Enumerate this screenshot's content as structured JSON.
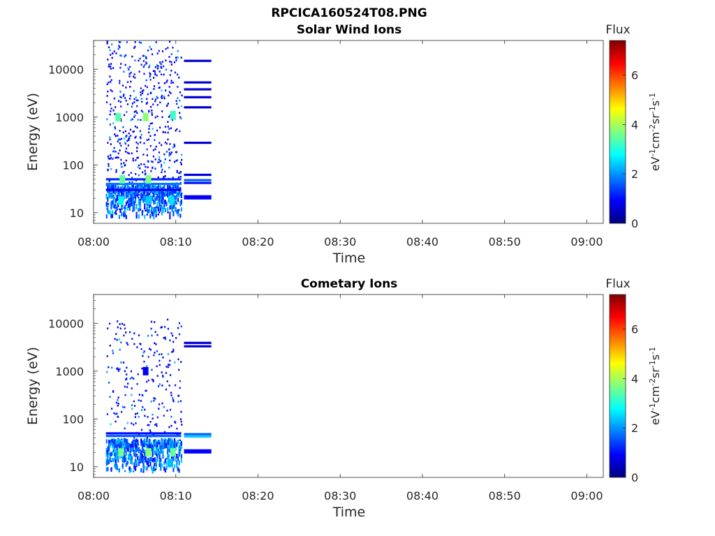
{
  "figure": {
    "title": "RPCICA160524T08.PNG"
  },
  "colors": {
    "axis": "#262626",
    "colormap": [
      "#00007f",
      "#0000ff",
      "#007fff",
      "#00ffff",
      "#7fff7f",
      "#ffff00",
      "#ff7f00",
      "#ff0000",
      "#7f0000"
    ]
  },
  "chart_data": [
    {
      "type": "heatmap",
      "title": "Solar Wind Ions",
      "xlabel": "Time",
      "ylabel": "Energy (eV)",
      "y_scale": "log",
      "xlim": [
        "08:00",
        "09:02"
      ],
      "ylim": [
        6,
        40000
      ],
      "x_ticks": [
        "08:00",
        "08:10",
        "08:20",
        "08:30",
        "08:40",
        "08:50",
        "09:00"
      ],
      "y_ticks": [
        "10",
        "100",
        "1000",
        "10000"
      ],
      "colorbar": {
        "title": "Flux",
        "label": "eV-1cm-2sr-1s-1",
        "range": [
          0,
          7.4
        ],
        "ticks": [
          "0",
          "2",
          "4",
          "6"
        ]
      },
      "data_extent": {
        "start": "08:01:30",
        "end": "08:14:20"
      },
      "clusters": [
        {
          "t": "08:03:00",
          "energy": 1000,
          "value": 3.4
        },
        {
          "t": "08:06:20",
          "energy": 1000,
          "value": 3.8
        },
        {
          "t": "08:09:40",
          "energy": 1100,
          "value": 3.2
        },
        {
          "t": "08:03:30",
          "energy": 50,
          "value": 3.5
        },
        {
          "t": "08:06:40",
          "energy": 50,
          "value": 3.7
        },
        {
          "t": "08:03:20",
          "energy": 18,
          "value": 2.8
        },
        {
          "t": "08:06:40",
          "energy": 18,
          "value": 2.4
        },
        {
          "t": "08:09:30",
          "energy": 18,
          "value": 2.6
        }
      ],
      "bands": [
        {
          "t_start": "08:01:30",
          "t_end": "08:10:40",
          "energy": 50,
          "value": 1.2
        },
        {
          "t_start": "08:01:30",
          "t_end": "08:10:40",
          "energy": 40,
          "value": 1.8
        },
        {
          "t_start": "08:01:30",
          "t_end": "08:10:40",
          "energy": 30,
          "value": 0.9
        },
        {
          "t_start": "08:11:00",
          "t_end": "08:14:20",
          "energy": 15000,
          "value": 0.6
        },
        {
          "t_start": "08:11:00",
          "t_end": "08:14:20",
          "energy": 5300,
          "value": 0.6
        },
        {
          "t_start": "08:11:00",
          "t_end": "08:14:20",
          "energy": 3800,
          "value": 0.6
        },
        {
          "t_start": "08:11:00",
          "t_end": "08:14:20",
          "energy": 2600,
          "value": 0.6
        },
        {
          "t_start": "08:11:00",
          "t_end": "08:14:20",
          "energy": 1600,
          "value": 0.6
        },
        {
          "t_start": "08:11:00",
          "t_end": "08:14:20",
          "energy": 290,
          "value": 0.6
        },
        {
          "t_start": "08:11:00",
          "t_end": "08:14:20",
          "energy": 62,
          "value": 0.7
        },
        {
          "t_start": "08:11:00",
          "t_end": "08:14:20",
          "energy": 48,
          "value": 1.6
        },
        {
          "t_start": "08:11:00",
          "t_end": "08:14:20",
          "energy": 42,
          "value": 1.0
        },
        {
          "t_start": "08:11:00",
          "t_end": "08:14:20",
          "energy": 22,
          "value": 0.9
        },
        {
          "t_start": "08:11:00",
          "t_end": "08:14:20",
          "energy": 20,
          "value": 0.9
        }
      ]
    },
    {
      "type": "heatmap",
      "title": "Cometary Ions",
      "xlabel": "Time",
      "ylabel": "Energy (eV)",
      "y_scale": "log",
      "xlim": [
        "08:00",
        "09:02"
      ],
      "ylim": [
        6,
        40000
      ],
      "x_ticks": [
        "08:00",
        "08:10",
        "08:20",
        "08:30",
        "08:40",
        "08:50",
        "09:00"
      ],
      "y_ticks": [
        "10",
        "100",
        "1000",
        "10000"
      ],
      "colorbar": {
        "title": "Flux",
        "label": "eV-1cm-2sr-1s-1",
        "range": [
          0,
          7.4
        ],
        "ticks": [
          "0",
          "2",
          "4",
          "6"
        ]
      },
      "data_extent": {
        "start": "08:01:30",
        "end": "08:14:20"
      },
      "clusters": [
        {
          "t": "08:03:20",
          "energy": 20,
          "value": 3.6
        },
        {
          "t": "08:06:40",
          "energy": 20,
          "value": 3.8
        },
        {
          "t": "08:09:40",
          "energy": 20,
          "value": 3.5
        },
        {
          "t": "08:06:20",
          "energy": 1000,
          "value": 0.8
        },
        {
          "t": "08:09:20",
          "energy": 12,
          "value": 2.3
        }
      ],
      "bands": [
        {
          "t_start": "08:01:30",
          "t_end": "08:10:40",
          "energy": 50,
          "value": 1.0
        },
        {
          "t_start": "08:01:30",
          "t_end": "08:10:40",
          "energy": 44,
          "value": 1.6
        },
        {
          "t_start": "08:11:00",
          "t_end": "08:14:20",
          "energy": 3900,
          "value": 0.6
        },
        {
          "t_start": "08:11:00",
          "t_end": "08:14:20",
          "energy": 3300,
          "value": 0.6
        },
        {
          "t_start": "08:11:00",
          "t_end": "08:14:20",
          "energy": 48,
          "value": 1.6
        },
        {
          "t_start": "08:11:00",
          "t_end": "08:14:20",
          "energy": 43,
          "value": 2.4
        },
        {
          "t_start": "08:11:00",
          "t_end": "08:14:20",
          "energy": 22,
          "value": 0.9
        },
        {
          "t_start": "08:11:00",
          "t_end": "08:14:20",
          "energy": 20,
          "value": 0.9
        }
      ]
    }
  ]
}
